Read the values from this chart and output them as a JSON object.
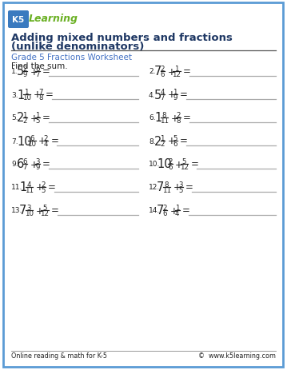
{
  "title1": "Adding mixed numbers and fractions",
  "title2": "(unlike denominators)",
  "subtitle": "Grade 5 Fractions Worksheet",
  "instruction": "Find the sum.",
  "bg_color": "#ffffff",
  "border_color": "#5b9bd5",
  "title_color": "#1f3864",
  "subtitle_color": "#4472c4",
  "text_color": "#222222",
  "line_color": "#aaaaaa",
  "footer_left": "Online reading & math for K-5",
  "footer_right": "©  www.k5learning.com",
  "problems": [
    {
      "num": "1.",
      "whole": "5",
      "n1": "2",
      "d1": "9",
      "n2": "6",
      "d2": "7"
    },
    {
      "num": "2.",
      "whole": "7",
      "n1": "2",
      "d1": "6",
      "n2": "1",
      "d2": "12"
    },
    {
      "num": "3.",
      "whole": "1",
      "n1": "1",
      "d1": "10",
      "n2": "7",
      "d2": "8"
    },
    {
      "num": "4.",
      "whole": "5",
      "n1": "4",
      "d1": "7",
      "n2": "1",
      "d2": "9"
    },
    {
      "num": "5.",
      "whole": "2",
      "n1": "1",
      "d1": "2",
      "n2": "1",
      "d2": "5"
    },
    {
      "num": "6.",
      "whole": "1",
      "n1": "8",
      "d1": "11",
      "n2": "2",
      "d2": "8"
    },
    {
      "num": "7.",
      "whole": "10",
      "n1": "6",
      "d1": "10",
      "n2": "2",
      "d2": "4"
    },
    {
      "num": "8.",
      "whole": "2",
      "n1": "1",
      "d1": "2",
      "n2": "5",
      "d2": "6"
    },
    {
      "num": "9.",
      "whole": "6",
      "n1": "6",
      "d1": "7",
      "n2": "3",
      "d2": "9"
    },
    {
      "num": "10.",
      "whole": "10",
      "n1": "2",
      "d1": "6",
      "n2": "5",
      "d2": "12"
    },
    {
      "num": "11.",
      "whole": "1",
      "n1": "4",
      "d1": "11",
      "n2": "2",
      "d2": "5"
    },
    {
      "num": "12.",
      "whole": "7",
      "n1": "8",
      "d1": "11",
      "n2": "3",
      "d2": "5"
    },
    {
      "num": "13.",
      "whole": "7",
      "n1": "3",
      "d1": "10",
      "n2": "5",
      "d2": "12"
    },
    {
      "num": "14.",
      "whole": "7",
      "n1": "2",
      "d1": "6",
      "n2": "1",
      "d2": "4"
    }
  ]
}
